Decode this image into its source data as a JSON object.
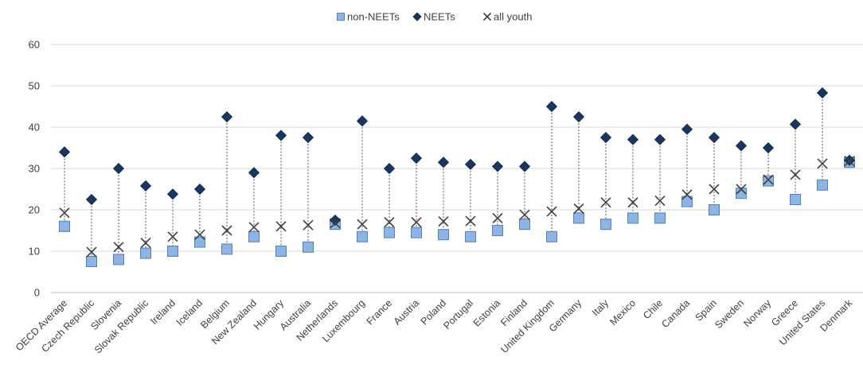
{
  "chart_data": {
    "type": "scatter",
    "ylim": [
      0,
      60
    ],
    "yticks": [
      0,
      10,
      20,
      30,
      40,
      50,
      60
    ],
    "grid": true,
    "legend_position": "top-center",
    "categories": [
      "OECD Average",
      "Czech Republic",
      "Slovenia",
      "Slovak Republic",
      "Ireland",
      "Iceland",
      "Belgium",
      "New Zealand",
      "Hungary",
      "Australia",
      "Netherlands",
      "Luxembourg",
      "France",
      "Austria",
      "Poland",
      "Portugal",
      "Estonia",
      "Finland",
      "United Kingdom",
      "Germany",
      "Italy",
      "Mexico",
      "Chile",
      "Canada",
      "Spain",
      "Sweden",
      "Norway",
      "Greece",
      "United States",
      "Denmark"
    ],
    "series": [
      {
        "name": "non-NEETs",
        "marker": "square",
        "color": "#8db4e2",
        "values": [
          16,
          7.5,
          8,
          9.5,
          10,
          12.2,
          10.5,
          13.5,
          10,
          11,
          16.5,
          13.5,
          14.5,
          14.5,
          14,
          13.5,
          15,
          16.5,
          13.5,
          18,
          16.5,
          18,
          18,
          22,
          20,
          24,
          27,
          22.5,
          26,
          31.5
        ]
      },
      {
        "name": "NEETs",
        "marker": "diamond",
        "color": "#17375e",
        "values": [
          34,
          22.5,
          30,
          25.8,
          23.8,
          25,
          42.5,
          29,
          38,
          37.5,
          17.5,
          41.5,
          30,
          32.5,
          31.5,
          31,
          30.5,
          30.5,
          45,
          42.5,
          37.5,
          37,
          37,
          39.5,
          37.5,
          35.5,
          35,
          40.7,
          48.3,
          32
        ]
      },
      {
        "name": "all youth",
        "marker": "x",
        "color": "#404040",
        "values": [
          19.3,
          9.8,
          11,
          12,
          13.5,
          14,
          15,
          15.8,
          16,
          16.3,
          16.8,
          16.5,
          17,
          17,
          17.2,
          17.3,
          18,
          18.8,
          19.6,
          20.3,
          21.8,
          21.8,
          22.2,
          23.7,
          25,
          25,
          27.3,
          28.5,
          31.2,
          31.8
        ]
      }
    ]
  }
}
